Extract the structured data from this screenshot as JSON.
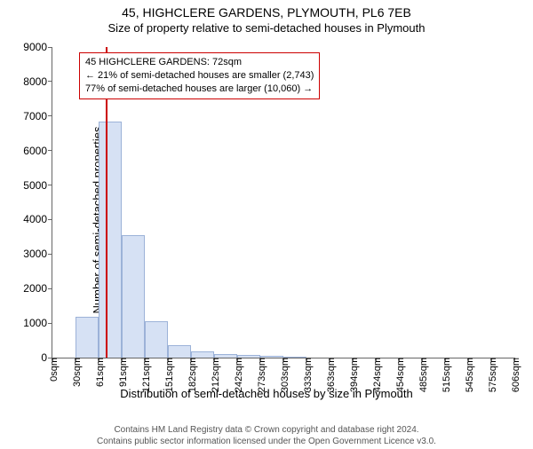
{
  "title": "45, HIGHCLERE GARDENS, PLYMOUTH, PL6 7EB",
  "subtitle": "Size of property relative to semi-detached houses in Plymouth",
  "chart": {
    "type": "histogram",
    "ylabel": "Number of semi-detached properties",
    "xlabel": "Distribution of semi-detached houses by size in Plymouth",
    "ylim": [
      0,
      9000
    ],
    "ytick_step": 1000,
    "xtick_labels": [
      "0sqm",
      "30sqm",
      "61sqm",
      "91sqm",
      "121sqm",
      "151sqm",
      "182sqm",
      "212sqm",
      "242sqm",
      "273sqm",
      "303sqm",
      "333sqm",
      "363sqm",
      "394sqm",
      "424sqm",
      "454sqm",
      "485sqm",
      "515sqm",
      "545sqm",
      "575sqm",
      "606sqm"
    ],
    "values": [
      0,
      1180,
      6830,
      3560,
      1060,
      370,
      190,
      110,
      70,
      60,
      30,
      0,
      0,
      0,
      0,
      0,
      0,
      0,
      0,
      0
    ],
    "bar_fill": "#d6e1f4",
    "bar_stroke": "#9cb2d8",
    "background": "#ffffff",
    "axis_color": "#666666",
    "reference_line": {
      "position_bin": 2,
      "fraction": 0.36,
      "color": "#cc0000"
    },
    "info_box": {
      "line1": "45 HIGHCLERE GARDENS: 72sqm",
      "line2": "← 21% of semi-detached houses are smaller (2,743)",
      "line3": "77% of semi-detached houses are larger (10,060) →",
      "border_color": "#cc0000"
    },
    "title_fontsize": 14,
    "label_fontsize": 13,
    "tick_fontsize": 12
  },
  "footer": {
    "line1": "Contains HM Land Registry data © Crown copyright and database right 2024.",
    "line2": "Contains public sector information licensed under the Open Government Licence v3.0."
  }
}
